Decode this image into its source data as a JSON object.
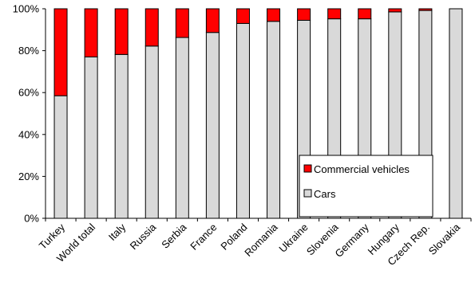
{
  "chart_data": {
    "type": "bar",
    "stacked": true,
    "categories": [
      "Turkey",
      "World total",
      "Italy",
      "Russia",
      "Serbia",
      "France",
      "Poland",
      "Romania",
      "Ukraine",
      "Slovenia",
      "Germany",
      "Hungary",
      "Czech Rep.",
      "Slovakia"
    ],
    "series": [
      {
        "name": "Cars",
        "color": "#d9d9d9",
        "values": [
          58.5,
          77,
          78.2,
          82.2,
          86.3,
          88.7,
          93,
          94,
          94.5,
          95.2,
          95.2,
          98.5,
          99.2,
          100
        ]
      },
      {
        "name": "Commercial vehicles",
        "color": "#ff0000",
        "values": [
          41.5,
          23,
          21.8,
          17.8,
          13.7,
          11.3,
          7,
          6,
          5.5,
          4.8,
          4.8,
          1.5,
          0.8,
          0
        ]
      }
    ],
    "y_ticks": [
      "0%",
      "20%",
      "40%",
      "60%",
      "80%",
      "100%"
    ],
    "ylim": [
      0,
      100
    ],
    "grid": false,
    "legend": {
      "placement": "inside-lower-right",
      "entries": [
        "Commercial vehicles",
        "Cars"
      ]
    }
  }
}
